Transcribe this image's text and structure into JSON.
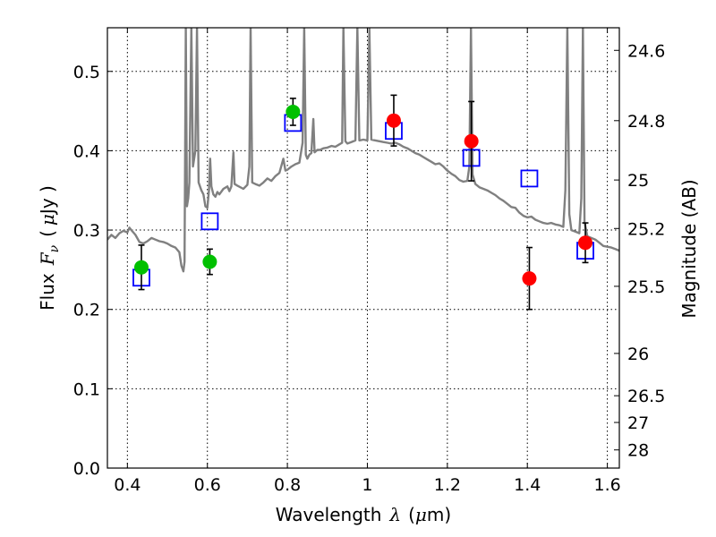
{
  "chart_data": {
    "type": "scatter",
    "title": "",
    "xlabel": {
      "prefix": "Wavelength",
      "symbol": "λ",
      "unit_open": "(",
      "unit_mu": "μ",
      "unit_rest": "m)"
    },
    "ylabel": {
      "prefix": "Flux",
      "symbol": "F",
      "subscript": "ν",
      "unit_open": "(",
      "unit_mu": "μ",
      "unit_rest": "Jy )"
    },
    "ylabel_right": "Magnitude (AB)",
    "xlim": [
      0.35,
      1.63
    ],
    "ylim": [
      0.0,
      0.555
    ],
    "grid": true,
    "x_ticks": [
      {
        "value": 0.4,
        "label": "0.4"
      },
      {
        "value": 0.6,
        "label": "0.6"
      },
      {
        "value": 0.8,
        "label": "0.8"
      },
      {
        "value": 1.0,
        "label": "1"
      },
      {
        "value": 1.2,
        "label": "1.2"
      },
      {
        "value": 1.4,
        "label": "1.4"
      },
      {
        "value": 1.6,
        "label": "1.6"
      }
    ],
    "y_ticks": [
      {
        "value": 0.0,
        "label": "0.0"
      },
      {
        "value": 0.1,
        "label": "0.1"
      },
      {
        "value": 0.2,
        "label": "0.2"
      },
      {
        "value": 0.3,
        "label": "0.3"
      },
      {
        "value": 0.4,
        "label": "0.4"
      },
      {
        "value": 0.5,
        "label": "0.5"
      }
    ],
    "right_ticks": [
      {
        "flux": 0.5265,
        "label": "24.6"
      },
      {
        "flux": 0.4379,
        "label": "24.8"
      },
      {
        "flux": 0.3631,
        "label": "25"
      },
      {
        "flux": 0.302,
        "label": "25.2"
      },
      {
        "flux": 0.2291,
        "label": "25.5"
      },
      {
        "flux": 0.1445,
        "label": "26"
      },
      {
        "flux": 0.0912,
        "label": "26.5"
      },
      {
        "flux": 0.0575,
        "label": "27"
      },
      {
        "flux": 0.0229,
        "label": "28"
      }
    ],
    "green_points": [
      {
        "x": 0.435,
        "y": 0.253,
        "err": 0.028
      },
      {
        "x": 0.606,
        "y": 0.26,
        "err": 0.016
      },
      {
        "x": 0.814,
        "y": 0.449,
        "err": 0.017
      }
    ],
    "red_points": [
      {
        "x": 1.066,
        "y": 0.438,
        "err": 0.032
      },
      {
        "x": 1.26,
        "y": 0.412,
        "err": 0.05
      },
      {
        "x": 1.405,
        "y": 0.239,
        "err": 0.039
      },
      {
        "x": 1.545,
        "y": 0.284,
        "err": 0.025
      }
    ],
    "model_boxes": [
      {
        "x": 0.435,
        "y": 0.24
      },
      {
        "x": 0.606,
        "y": 0.311
      },
      {
        "x": 0.814,
        "y": 0.435
      },
      {
        "x": 1.066,
        "y": 0.425
      },
      {
        "x": 1.26,
        "y": 0.391
      },
      {
        "x": 1.405,
        "y": 0.365
      },
      {
        "x": 1.545,
        "y": 0.274
      }
    ],
    "spectrum": [
      [
        0.35,
        0.288
      ],
      [
        0.36,
        0.294
      ],
      [
        0.37,
        0.29
      ],
      [
        0.38,
        0.296
      ],
      [
        0.39,
        0.299
      ],
      [
        0.4,
        0.297
      ],
      [
        0.405,
        0.303
      ],
      [
        0.41,
        0.3
      ],
      [
        0.42,
        0.294
      ],
      [
        0.43,
        0.285
      ],
      [
        0.44,
        0.283
      ],
      [
        0.45,
        0.286
      ],
      [
        0.46,
        0.29
      ],
      [
        0.47,
        0.288
      ],
      [
        0.48,
        0.286
      ],
      [
        0.49,
        0.285
      ],
      [
        0.5,
        0.283
      ],
      [
        0.51,
        0.28
      ],
      [
        0.52,
        0.278
      ],
      [
        0.53,
        0.272
      ],
      [
        0.535,
        0.255
      ],
      [
        0.54,
        0.248
      ],
      [
        0.543,
        0.26
      ],
      [
        0.546,
        0.555
      ],
      [
        0.549,
        0.33
      ],
      [
        0.552,
        0.34
      ],
      [
        0.555,
        0.36
      ],
      [
        0.56,
        0.555
      ],
      [
        0.564,
        0.38
      ],
      [
        0.57,
        0.4
      ],
      [
        0.574,
        0.555
      ],
      [
        0.578,
        0.36
      ],
      [
        0.585,
        0.35
      ],
      [
        0.59,
        0.345
      ],
      [
        0.595,
        0.33
      ],
      [
        0.6,
        0.328
      ],
      [
        0.604,
        0.35
      ],
      [
        0.607,
        0.39
      ],
      [
        0.61,
        0.355
      ],
      [
        0.615,
        0.345
      ],
      [
        0.62,
        0.342
      ],
      [
        0.625,
        0.348
      ],
      [
        0.63,
        0.345
      ],
      [
        0.64,
        0.352
      ],
      [
        0.65,
        0.355
      ],
      [
        0.655,
        0.349
      ],
      [
        0.66,
        0.355
      ],
      [
        0.665,
        0.398
      ],
      [
        0.668,
        0.358
      ],
      [
        0.675,
        0.356
      ],
      [
        0.69,
        0.352
      ],
      [
        0.7,
        0.357
      ],
      [
        0.705,
        0.38
      ],
      [
        0.708,
        0.555
      ],
      [
        0.712,
        0.36
      ],
      [
        0.72,
        0.358
      ],
      [
        0.73,
        0.356
      ],
      [
        0.74,
        0.36
      ],
      [
        0.75,
        0.365
      ],
      [
        0.76,
        0.362
      ],
      [
        0.77,
        0.368
      ],
      [
        0.78,
        0.372
      ],
      [
        0.79,
        0.39
      ],
      [
        0.795,
        0.375
      ],
      [
        0.8,
        0.376
      ],
      [
        0.81,
        0.38
      ],
      [
        0.82,
        0.383
      ],
      [
        0.83,
        0.385
      ],
      [
        0.838,
        0.41
      ],
      [
        0.842,
        0.555
      ],
      [
        0.846,
        0.395
      ],
      [
        0.85,
        0.39
      ],
      [
        0.855,
        0.395
      ],
      [
        0.86,
        0.397
      ],
      [
        0.865,
        0.44
      ],
      [
        0.868,
        0.398
      ],
      [
        0.875,
        0.401
      ],
      [
        0.882,
        0.401
      ],
      [
        0.89,
        0.403
      ],
      [
        0.9,
        0.404
      ],
      [
        0.91,
        0.406
      ],
      [
        0.92,
        0.405
      ],
      [
        0.93,
        0.408
      ],
      [
        0.937,
        0.41
      ],
      [
        0.94,
        0.555
      ],
      [
        0.945,
        0.412
      ],
      [
        0.95,
        0.409
      ],
      [
        0.96,
        0.411
      ],
      [
        0.97,
        0.413
      ],
      [
        0.975,
        0.555
      ],
      [
        0.98,
        0.413
      ],
      [
        0.99,
        0.414
      ],
      [
        1.0,
        0.413
      ],
      [
        1.005,
        0.555
      ],
      [
        1.01,
        0.414
      ],
      [
        1.02,
        0.413
      ],
      [
        1.03,
        0.412
      ],
      [
        1.04,
        0.411
      ],
      [
        1.05,
        0.41
      ],
      [
        1.06,
        0.409
      ],
      [
        1.07,
        0.41
      ],
      [
        1.08,
        0.408
      ],
      [
        1.09,
        0.405
      ],
      [
        1.1,
        0.403
      ],
      [
        1.11,
        0.4
      ],
      [
        1.12,
        0.397
      ],
      [
        1.13,
        0.395
      ],
      [
        1.14,
        0.392
      ],
      [
        1.15,
        0.389
      ],
      [
        1.16,
        0.386
      ],
      [
        1.17,
        0.383
      ],
      [
        1.18,
        0.384
      ],
      [
        1.19,
        0.38
      ],
      [
        1.2,
        0.375
      ],
      [
        1.21,
        0.371
      ],
      [
        1.22,
        0.368
      ],
      [
        1.23,
        0.363
      ],
      [
        1.24,
        0.361
      ],
      [
        1.25,
        0.362
      ],
      [
        1.255,
        0.38
      ],
      [
        1.259,
        0.555
      ],
      [
        1.263,
        0.37
      ],
      [
        1.27,
        0.358
      ],
      [
        1.28,
        0.354
      ],
      [
        1.29,
        0.352
      ],
      [
        1.3,
        0.35
      ],
      [
        1.31,
        0.347
      ],
      [
        1.32,
        0.344
      ],
      [
        1.33,
        0.34
      ],
      [
        1.34,
        0.337
      ],
      [
        1.35,
        0.333
      ],
      [
        1.36,
        0.329
      ],
      [
        1.37,
        0.328
      ],
      [
        1.38,
        0.322
      ],
      [
        1.39,
        0.318
      ],
      [
        1.4,
        0.316
      ],
      [
        1.41,
        0.317
      ],
      [
        1.42,
        0.313
      ],
      [
        1.43,
        0.311
      ],
      [
        1.44,
        0.309
      ],
      [
        1.45,
        0.308
      ],
      [
        1.46,
        0.309
      ],
      [
        1.47,
        0.307
      ],
      [
        1.48,
        0.306
      ],
      [
        1.49,
        0.304
      ],
      [
        1.495,
        0.35
      ],
      [
        1.5,
        0.555
      ],
      [
        1.505,
        0.32
      ],
      [
        1.51,
        0.3
      ],
      [
        1.52,
        0.298
      ],
      [
        1.53,
        0.296
      ],
      [
        1.535,
        0.34
      ],
      [
        1.539,
        0.555
      ],
      [
        1.543,
        0.31
      ],
      [
        1.55,
        0.292
      ],
      [
        1.56,
        0.29
      ],
      [
        1.57,
        0.288
      ],
      [
        1.58,
        0.284
      ],
      [
        1.59,
        0.28
      ],
      [
        1.6,
        0.279
      ],
      [
        1.61,
        0.278
      ],
      [
        1.62,
        0.276
      ],
      [
        1.63,
        0.274
      ]
    ],
    "colors": {
      "spectrum": "#808080",
      "green_points": "#00c000",
      "red_points": "#ff0000",
      "model_boxes": "#0000ff",
      "error_bars": "#000000"
    }
  }
}
